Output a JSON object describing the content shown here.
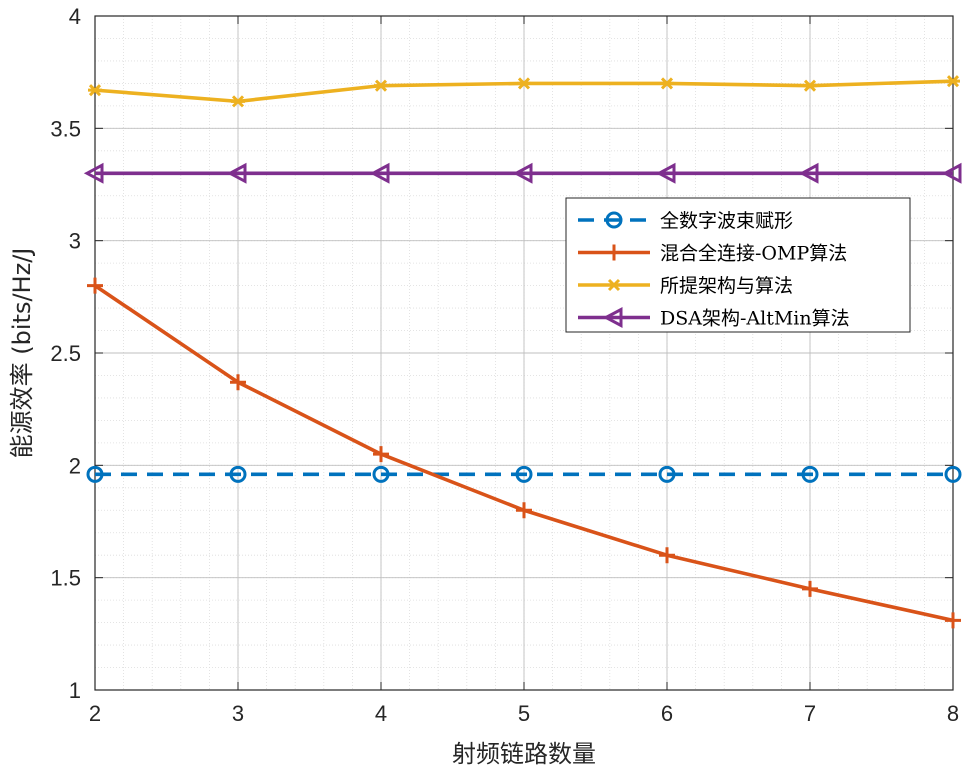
{
  "chart_data": {
    "type": "line",
    "title": "",
    "xlabel": "射频链路数量",
    "ylabel": "能源效率 (bits/Hz/J",
    "xlim": [
      2,
      8
    ],
    "ylim": [
      1,
      4
    ],
    "x": [
      2,
      3,
      4,
      5,
      6,
      7,
      8
    ],
    "xticks": [
      "2",
      "3",
      "4",
      "5",
      "6",
      "7",
      "8"
    ],
    "yticks": [
      "1",
      "1.5",
      "2",
      "2.5",
      "3",
      "3.5",
      "4"
    ],
    "grid": true,
    "minor_grid": true,
    "legend_position": "right",
    "series": [
      {
        "name": "全数字波束赋形",
        "color": "#0072BD",
        "marker": "circle",
        "dash": true,
        "values": [
          1.96,
          1.96,
          1.96,
          1.96,
          1.96,
          1.96,
          1.96
        ]
      },
      {
        "name": "混合全连接-OMP算法",
        "color": "#D95319",
        "marker": "plus",
        "dash": false,
        "values": [
          2.8,
          2.37,
          2.05,
          1.8,
          1.6,
          1.45,
          1.31
        ]
      },
      {
        "name": "所提架构与算法",
        "color": "#EDB120",
        "marker": "asterisk",
        "dash": false,
        "values": [
          3.67,
          3.62,
          3.69,
          3.7,
          3.7,
          3.69,
          3.71
        ]
      },
      {
        "name": "DSA架构-AltMin算法",
        "color": "#7E2F8E",
        "marker": "triangle-left",
        "dash": false,
        "values": [
          3.3,
          3.3,
          3.3,
          3.3,
          3.3,
          3.3,
          3.3
        ]
      }
    ]
  }
}
